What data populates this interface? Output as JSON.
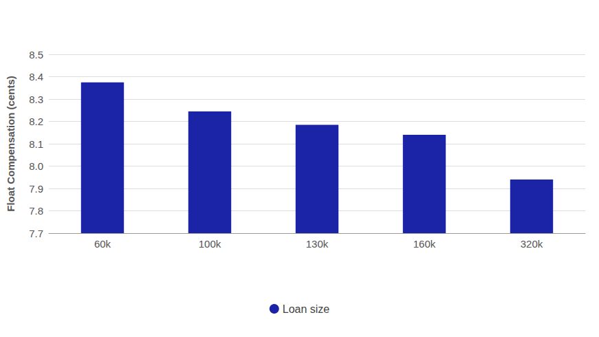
{
  "chart_data": {
    "type": "bar",
    "y_label": "Float Compensation (cents)",
    "categories": [
      "60k",
      "100k",
      "130k",
      "160k",
      "320k"
    ],
    "series": [
      {
        "name": "Loan size",
        "color": "#1b24a6",
        "values": [
          8.375,
          8.245,
          8.185,
          8.14,
          7.94
        ]
      }
    ],
    "ylim": [
      7.7,
      8.5
    ],
    "yticks": [
      7.7,
      7.8,
      7.9,
      {
        "value": 8,
        "label": "8.0"
      },
      8.1,
      8.2,
      8.3,
      8.4,
      8.5
    ],
    "grid": true,
    "legend": "bottom"
  }
}
